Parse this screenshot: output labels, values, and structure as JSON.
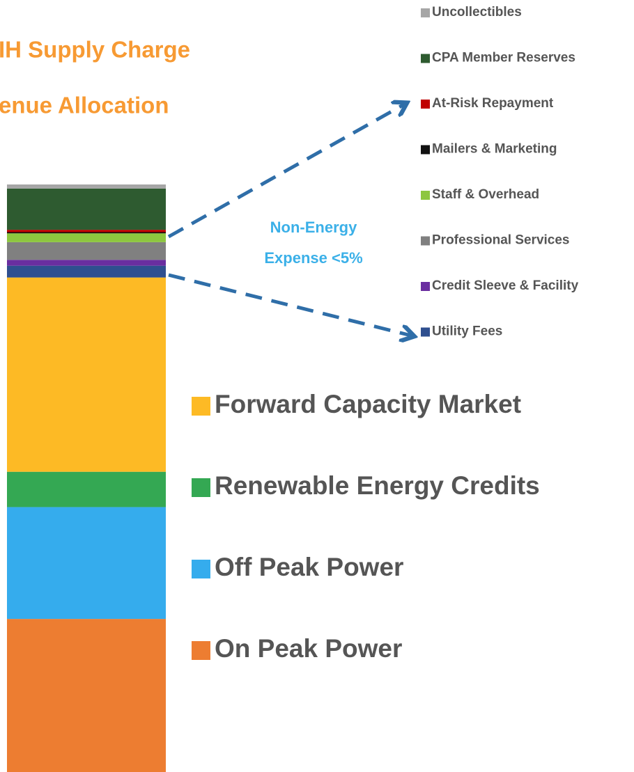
{
  "chart_data": {
    "type": "stacked-bar",
    "title": [
      "IH Supply Charge",
      "enue Allocation"
    ],
    "annotation": [
      "Non-Energy",
      "Expense <5%"
    ],
    "series": [
      {
        "name": "On Peak Power",
        "color": "#ed7d31",
        "values": [
          26
        ]
      },
      {
        "name": "Off Peak Power",
        "color": "#35aced",
        "values": [
          19
        ]
      },
      {
        "name": "Renewable Energy Credits",
        "color": "#34a853",
        "values": [
          6
        ]
      },
      {
        "name": "Forward Capacity Market",
        "color": "#fdba25",
        "values": [
          33
        ]
      },
      {
        "name": "Utility Fees",
        "color": "#2f4f8f",
        "values": [
          2
        ]
      },
      {
        "name": "Credit Sleeve & Facility",
        "color": "#6a2ea0",
        "values": [
          1
        ]
      },
      {
        "name": "Professional Services",
        "color": "#808080",
        "values": [
          3
        ]
      },
      {
        "name": "Staff & Overhead",
        "color": "#8dc63f",
        "values": [
          1.5
        ]
      },
      {
        "name": "Mailers & Marketing",
        "color": "#111111",
        "values": [
          0.2
        ]
      },
      {
        "name": "At-Risk Repayment",
        "color": "#c00000",
        "values": [
          0.4
        ]
      },
      {
        "name": "CPA Member Reserves",
        "color": "#2e5b30",
        "values": [
          7
        ]
      },
      {
        "name": "Uncollectibles",
        "color": "#a6a6a6",
        "values": [
          0.7
        ]
      }
    ]
  }
}
